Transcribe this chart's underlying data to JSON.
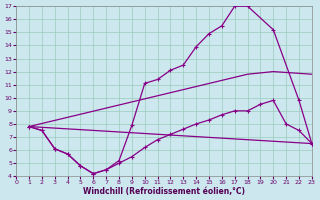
{
  "background_color": "#cce8ee",
  "line_color": "#880088",
  "grid_color": "#99ccbb",
  "xlabel": "Windchill (Refroidissement éolien,°C)",
  "xlim": [
    0,
    23
  ],
  "ylim": [
    4,
    17
  ],
  "yticks": [
    4,
    5,
    6,
    7,
    8,
    9,
    10,
    11,
    12,
    13,
    14,
    15,
    16,
    17
  ],
  "xticks": [
    0,
    1,
    2,
    3,
    4,
    5,
    6,
    7,
    8,
    9,
    10,
    11,
    12,
    13,
    14,
    15,
    16,
    17,
    18,
    19,
    20,
    21,
    22,
    23
  ],
  "line1_x": [
    1,
    2,
    3,
    4,
    5,
    6,
    7,
    8,
    9,
    10,
    11,
    12,
    13,
    14,
    15,
    16,
    17,
    18,
    20,
    22,
    23
  ],
  "line1_y": [
    7.8,
    7.5,
    6.1,
    5.7,
    4.8,
    4.2,
    4.5,
    5.2,
    7.9,
    11.1,
    11.4,
    12.1,
    12.5,
    13.9,
    14.9,
    15.5,
    17.0,
    17.0,
    15.2,
    9.8,
    6.5
  ],
  "line2_x": [
    1,
    2,
    3,
    4,
    5,
    6,
    7,
    8,
    9,
    10,
    11,
    12,
    13,
    14,
    15,
    16,
    17,
    18,
    19,
    20,
    21,
    22,
    23
  ],
  "line2_y": [
    7.8,
    7.5,
    6.1,
    5.7,
    4.8,
    4.2,
    4.5,
    5.0,
    5.5,
    6.2,
    6.8,
    7.2,
    7.6,
    8.0,
    8.3,
    8.7,
    9.0,
    9.0,
    9.5,
    9.8,
    8.0,
    7.5,
    6.5
  ],
  "line3_x": [
    1,
    23
  ],
  "line3_y": [
    7.8,
    6.5
  ],
  "line4_x": [
    1,
    18,
    20,
    23
  ],
  "line4_y": [
    7.8,
    11.8,
    12.0,
    11.8
  ],
  "marker": "+"
}
